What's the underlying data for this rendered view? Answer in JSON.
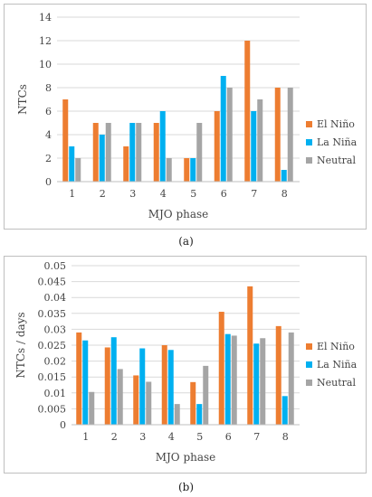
{
  "chart_data": [
    {
      "type": "bar",
      "panel_label": "(a)",
      "xlabel": "MJO phase",
      "ylabel": "NTCs",
      "categories": [
        "1",
        "2",
        "3",
        "4",
        "5",
        "6",
        "7",
        "8"
      ],
      "ylim": [
        0,
        14
      ],
      "yticks": [
        "0",
        "2",
        "4",
        "6",
        "8",
        "10",
        "12",
        "14"
      ],
      "grid": true,
      "legend_position": "right",
      "series": [
        {
          "name": "El Niño",
          "color": "#ED7D31",
          "values": [
            7,
            5,
            3,
            5,
            2,
            6,
            12,
            8
          ]
        },
        {
          "name": "La Niña",
          "color": "#00B0F0",
          "values": [
            3,
            4,
            5,
            6,
            2,
            9,
            6,
            1
          ]
        },
        {
          "name": "Neutral",
          "color": "#A5A5A5",
          "values": [
            2,
            5,
            5,
            2,
            5,
            8,
            7,
            8
          ]
        }
      ]
    },
    {
      "type": "bar",
      "panel_label": "(b)",
      "xlabel": "MJO phase",
      "ylabel": "NTCs / days",
      "categories": [
        "1",
        "2",
        "3",
        "4",
        "5",
        "6",
        "7",
        "8"
      ],
      "ylim": [
        0,
        0.05
      ],
      "yticks": [
        "0",
        "0.005",
        "0.01",
        "0.015",
        "0.02",
        "0.025",
        "0.03",
        "0.035",
        "0.04",
        "0.045",
        "0.05"
      ],
      "grid": true,
      "legend_position": "right",
      "series": [
        {
          "name": "El Niño",
          "color": "#ED7D31",
          "values": [
            0.029,
            0.0243,
            0.0155,
            0.025,
            0.0134,
            0.0355,
            0.0435,
            0.031
          ]
        },
        {
          "name": "La Niña",
          "color": "#00B0F0",
          "values": [
            0.0265,
            0.0275,
            0.024,
            0.0235,
            0.0065,
            0.0285,
            0.0255,
            0.009
          ]
        },
        {
          "name": "Neutral",
          "color": "#A5A5A5",
          "values": [
            0.0103,
            0.0175,
            0.0135,
            0.0065,
            0.0185,
            0.028,
            0.0272,
            0.029
          ]
        }
      ]
    }
  ]
}
